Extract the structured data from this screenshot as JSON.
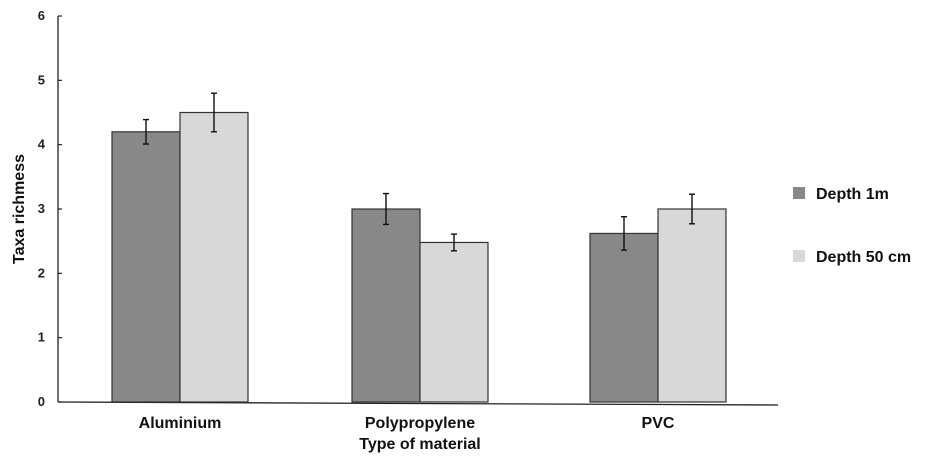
{
  "chart_data": {
    "type": "bar",
    "title": "",
    "xlabel": "Type of material",
    "ylabel": "Taxa richmess",
    "ylim": [
      0,
      6
    ],
    "yticks": [
      0,
      1,
      2,
      3,
      4,
      5,
      6
    ],
    "grid": false,
    "legend_position": "right",
    "categories": [
      "Aluminium",
      "Polypropylene",
      "PVC"
    ],
    "series": [
      {
        "name": "Depth 1m",
        "color": "#888888",
        "values": [
          4.2,
          3.0,
          2.62
        ],
        "errors": [
          0.19,
          0.24,
          0.26
        ]
      },
      {
        "name": "Depth 50 cm",
        "color": "#d8d8d8",
        "values": [
          4.5,
          2.48,
          3.0
        ],
        "errors": [
          0.3,
          0.13,
          0.23
        ]
      }
    ]
  }
}
